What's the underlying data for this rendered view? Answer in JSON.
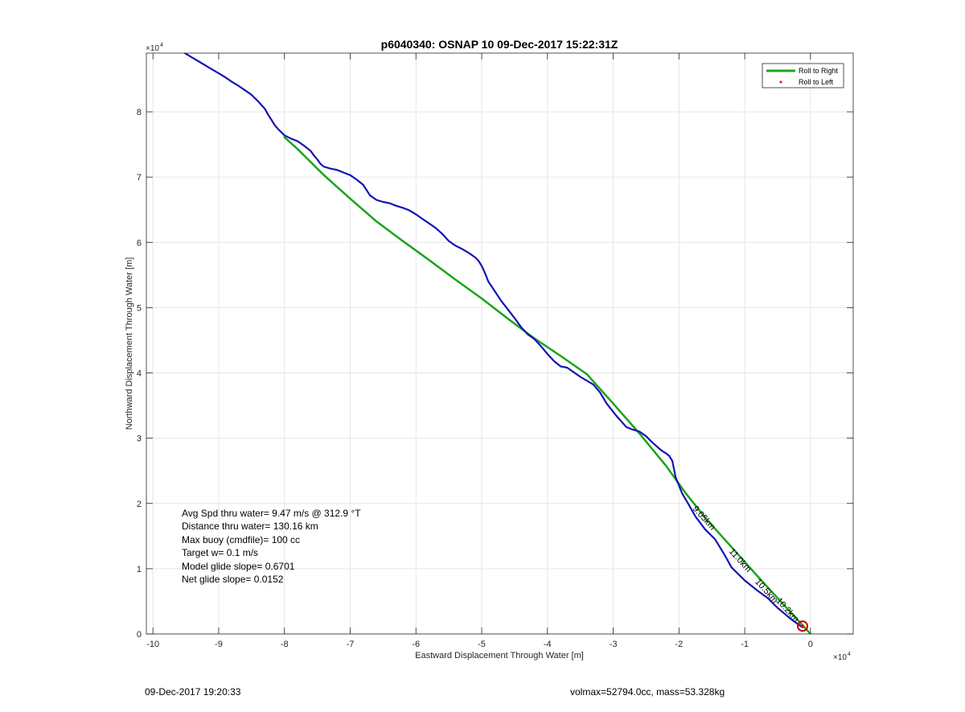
{
  "chart_data": {
    "type": "line",
    "title": "p6040340: OSNAP 10 09-Dec-2017 15:22:31Z",
    "xlabel": "Eastward Displacement Through Water [m]",
    "ylabel": "Northward Displacement Through Water [m]",
    "x_exponent_label": "×10",
    "x_exponent": "4",
    "y_exponent_label": "×10",
    "y_exponent": "4",
    "xlim": [
      -101000,
      6500
    ],
    "ylim": [
      0,
      89000
    ],
    "xticks": [
      -100000,
      -90000,
      -80000,
      -70000,
      -60000,
      -50000,
      -40000,
      -30000,
      -20000,
      -10000,
      0
    ],
    "xtick_labels": [
      "-10",
      "-9",
      "-8",
      "-7",
      "-6",
      "-5",
      "-4",
      "-3",
      "-2",
      "-1",
      "0"
    ],
    "yticks": [
      0,
      10000,
      20000,
      30000,
      40000,
      50000,
      60000,
      70000,
      80000
    ],
    "ytick_labels": [
      "0",
      "1",
      "2",
      "3",
      "4",
      "5",
      "6",
      "7",
      "8"
    ],
    "grid": true,
    "legend_position": "top-right",
    "legend": [
      {
        "label": "Roll to Right",
        "color": "#1aa41a",
        "style": "line"
      },
      {
        "label": "Roll to Left",
        "color": "#ff0000",
        "style": "dot"
      }
    ],
    "series": [
      {
        "name": "Roll to Right",
        "color": "#1aa41a",
        "x": [
          0,
          -4000,
          -8000,
          -12000,
          -16000,
          -19000,
          -22000,
          -26000,
          -30000,
          -34000,
          -38000,
          -42000,
          -46000,
          -50000,
          -54000,
          -58000,
          -62000,
          -66000,
          -70000,
          -74000,
          -78000,
          -80000
        ],
        "y": [
          0,
          4400,
          8800,
          13300,
          17800,
          21600,
          25800,
          30700,
          35300,
          39800,
          42600,
          45300,
          48300,
          51400,
          54300,
          57300,
          60200,
          63200,
          66700,
          70300,
          74300,
          76100
        ]
      },
      {
        "color": "#1414b4",
        "x": [
          -1200,
          -3000,
          -5000,
          -6500,
          -8000,
          -10000,
          -12000,
          -13000,
          -14500,
          -16000,
          -17500,
          -18500,
          -19500,
          -20500,
          -21000,
          -21500,
          -22000,
          -22500,
          -23000,
          -24000,
          -25000,
          -26000,
          -27000,
          -27500,
          -28000,
          -29500,
          -31000,
          -32000,
          -33000,
          -34000,
          -35000,
          -36000,
          -37000,
          -38000,
          -39000,
          -40000,
          -41000,
          -42000,
          -43000,
          -44000,
          -45000,
          -46000,
          -47000,
          -48000,
          -49000,
          -49500,
          -50000,
          -50500,
          -51000,
          -52000,
          -53000,
          -54000,
          -55000,
          -56000,
          -57000,
          -58000,
          -59000,
          -60000,
          -61000,
          -62000,
          -63000,
          -64000,
          -65000,
          -66000,
          -67000,
          -67500,
          -68000,
          -69000,
          -70000,
          -71000,
          -72000,
          -73000,
          -74000,
          -74500,
          -75000,
          -75500,
          -76000,
          -77000,
          -78000,
          -79000,
          -80000,
          -81000,
          -81500,
          -82000,
          -82500,
          -83000,
          -84000,
          -85000,
          -86000,
          -87000,
          -88000,
          -89000,
          -90000,
          -91000,
          -92000,
          -93000,
          -94000,
          -95000,
          -95500
        ],
        "y": [
          1000,
          2300,
          4000,
          5500,
          6600,
          8200,
          10200,
          12000,
          14500,
          16000,
          18000,
          19800,
          21500,
          24000,
          26500,
          27300,
          27700,
          28000,
          28400,
          29300,
          30300,
          31000,
          31300,
          31500,
          31700,
          33400,
          35300,
          37000,
          38200,
          38800,
          39400,
          40100,
          40800,
          41000,
          41800,
          42900,
          44100,
          45200,
          45900,
          47000,
          48400,
          49700,
          51000,
          52500,
          54000,
          55300,
          56400,
          57200,
          57700,
          58400,
          59000,
          59500,
          60200,
          61300,
          62200,
          62900,
          63600,
          64300,
          64900,
          65300,
          65600,
          66000,
          66200,
          66500,
          67200,
          68000,
          68800,
          69600,
          70300,
          70700,
          71100,
          71300,
          71600,
          72000,
          72700,
          73300,
          74000,
          74800,
          75500,
          75900,
          76400,
          77400,
          78000,
          78800,
          79600,
          80500,
          81600,
          82600,
          83300,
          84000,
          84600,
          85300,
          85900,
          86500,
          87100,
          87700,
          88300,
          88900,
          89200
        ]
      }
    ],
    "roll_to_left_points": [
      {
        "x": -1200,
        "y": 1200
      }
    ],
    "track_labels": [
      {
        "text": "9.05km",
        "x": -16500,
        "y": 17500,
        "angle": 48
      },
      {
        "text": "11.0km",
        "x": -11000,
        "y": 11000,
        "angle": 48
      },
      {
        "text": "10.5km",
        "x": -7000,
        "y": 6300,
        "angle": 48
      },
      {
        "text": "10.2km",
        "x": -3800,
        "y": 3400,
        "angle": 48
      }
    ],
    "annotations": [
      "Avg Spd thru water=  9.47 m/s @ 312.9 °T",
      "Distance thru water= 130.16 km",
      "Max buoy (cmdfile)= 100 cc",
      "Target w= 0.1 m/s",
      "Model glide slope= 0.6701",
      "Net glide slope= 0.0152"
    ]
  },
  "footer": {
    "left": "09-Dec-2017 19:20:33",
    "right": "volmax=52794.0cc, mass=53.328kg"
  }
}
